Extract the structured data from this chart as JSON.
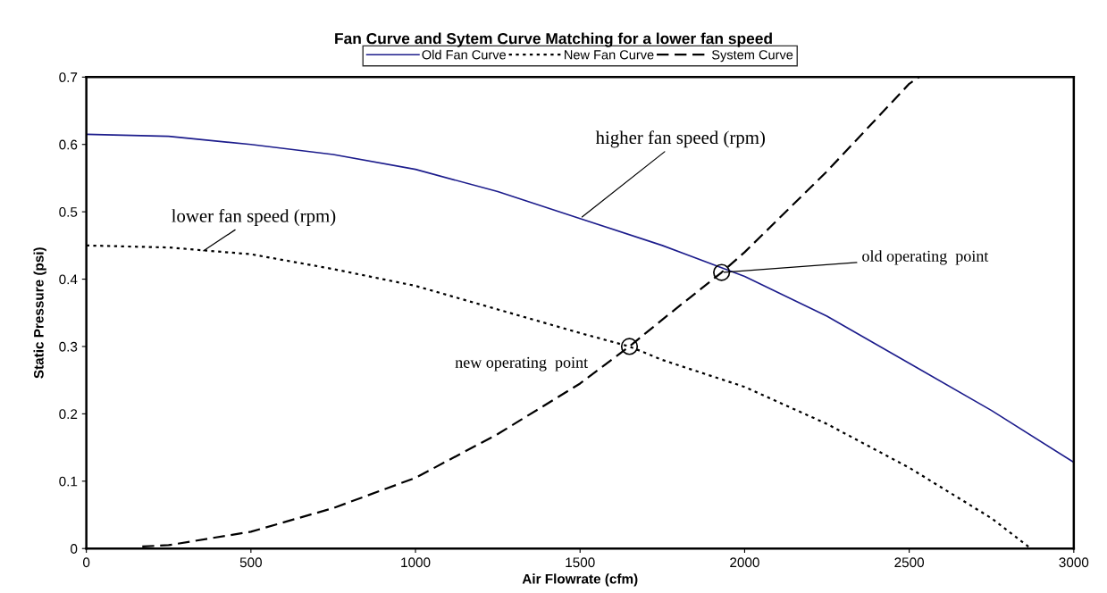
{
  "chart_data": {
    "type": "line",
    "title": "Fan Curve and Sytem Curve Matching for a lower fan speed",
    "xlabel": "Air Flowrate (cfm)",
    "ylabel": "Static Pressure (psi)",
    "xlim": [
      0,
      3000
    ],
    "xticks": [
      0,
      500,
      1000,
      1500,
      2000,
      2500,
      3000
    ],
    "ylim": [
      0,
      0.7
    ],
    "yticks": [
      0,
      0.1,
      0.2,
      0.3,
      0.4,
      0.5,
      0.6,
      0.7
    ],
    "grid": false,
    "legend": "top",
    "marker": "none",
    "series": [
      {
        "name": "Old Fan Curve",
        "color": "#1c1c8c",
        "line_style": "solid",
        "x": [
          0,
          250,
          500,
          750,
          1000,
          1250,
          1500,
          1750,
          2000,
          2250,
          2500,
          2750,
          3000
        ],
        "values": [
          0.615,
          0.612,
          0.6,
          0.585,
          0.563,
          0.53,
          0.49,
          0.45,
          0.404,
          0.345,
          0.275,
          0.205,
          0.128
        ]
      },
      {
        "name": "New Fan Curve",
        "color": "#000000",
        "line_style": "dotted",
        "x": [
          0,
          250,
          500,
          750,
          1000,
          1250,
          1500,
          1650,
          1750,
          2000,
          2250,
          2500,
          2750,
          2870
        ],
        "values": [
          0.45,
          0.447,
          0.437,
          0.415,
          0.39,
          0.355,
          0.32,
          0.3,
          0.28,
          0.24,
          0.185,
          0.12,
          0.045,
          0
        ]
      },
      {
        "name": "System Curve",
        "color": "#000000",
        "line_style": "dashed",
        "x": [
          170,
          250,
          500,
          750,
          1000,
          1250,
          1500,
          1650,
          1750,
          1930,
          2000,
          2250,
          2500,
          2530
        ],
        "values": [
          0.003,
          0.005,
          0.025,
          0.06,
          0.105,
          0.17,
          0.245,
          0.3,
          0.34,
          0.41,
          0.44,
          0.56,
          0.69,
          0.7
        ]
      },
      {
        "type": "scatter",
        "color": "#000000",
        "marker": "circle",
        "x": [
          1650,
          1930
        ],
        "values": [
          0.3,
          0.41
        ]
      }
    ],
    "annotations": [
      {
        "text": "higher fan speed (rpm)",
        "x": 1500,
        "y": 0.49
      },
      {
        "text": "lower fan speed (rpm)",
        "x": 350,
        "y": 0.44
      },
      {
        "text": "new operating  point",
        "x": 1650,
        "y": 0.3
      },
      {
        "text": "old operating  point",
        "x": 1930,
        "y": 0.41
      }
    ]
  }
}
